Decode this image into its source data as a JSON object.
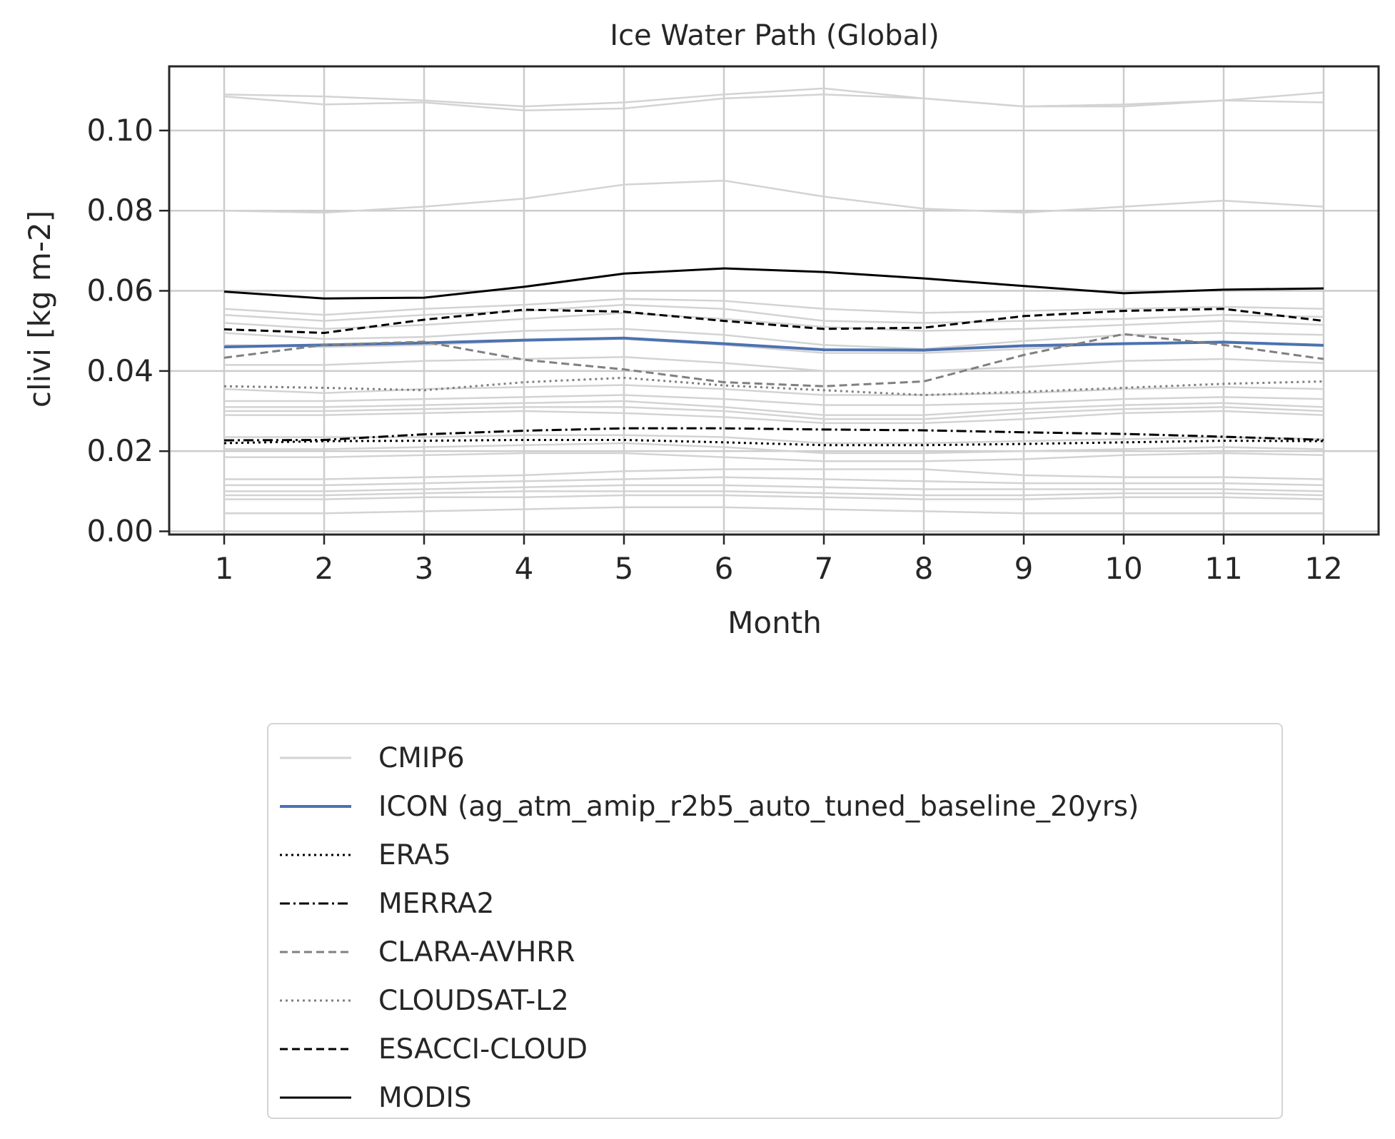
{
  "chart_data": {
    "type": "line",
    "title": "Ice Water Path (Global)",
    "xlabel": "Month",
    "ylabel": "clivi [kg m-2]",
    "x": [
      1,
      2,
      3,
      4,
      5,
      6,
      7,
      8,
      9,
      10,
      11,
      12
    ],
    "xlim": [
      0.45,
      12.55
    ],
    "ylim": [
      -0.0008,
      0.116
    ],
    "yticks": [
      0.0,
      0.02,
      0.04,
      0.06,
      0.08,
      0.1
    ],
    "ytick_labels": [
      "0.00",
      "0.02",
      "0.04",
      "0.06",
      "0.08",
      "0.10"
    ],
    "xtick_labels": [
      "1",
      "2",
      "3",
      "4",
      "5",
      "6",
      "7",
      "8",
      "9",
      "10",
      "11",
      "12"
    ],
    "grid": true,
    "legend_placement": "below",
    "cmip6_color": "#d3d3d3",
    "cmip6_series": [
      [
        0.109,
        0.1085,
        0.1075,
        0.106,
        0.107,
        0.109,
        0.1105,
        0.108,
        0.106,
        0.106,
        0.1075,
        0.1095
      ],
      [
        0.1085,
        0.1065,
        0.107,
        0.105,
        0.1055,
        0.108,
        0.109,
        0.108,
        0.106,
        0.1065,
        0.1075,
        0.107
      ],
      [
        0.08,
        0.0795,
        0.081,
        0.083,
        0.0865,
        0.0875,
        0.0835,
        0.0805,
        0.0795,
        0.081,
        0.0825,
        0.081
      ],
      [
        0.0555,
        0.054,
        0.0555,
        0.0565,
        0.058,
        0.0575,
        0.0555,
        0.0545,
        0.055,
        0.0555,
        0.056,
        0.0555
      ],
      [
        0.054,
        0.0525,
        0.054,
        0.055,
        0.0565,
        0.0555,
        0.0525,
        0.052,
        0.0525,
        0.053,
        0.054,
        0.0535
      ],
      [
        0.052,
        0.0505,
        0.0515,
        0.053,
        0.0545,
        0.053,
        0.051,
        0.05,
        0.0505,
        0.0515,
        0.0525,
        0.0515
      ],
      [
        0.0495,
        0.048,
        0.0485,
        0.05,
        0.0505,
        0.049,
        0.0465,
        0.0455,
        0.0475,
        0.049,
        0.0495,
        0.049
      ],
      [
        0.0465,
        0.046,
        0.0465,
        0.0475,
        0.048,
        0.0465,
        0.0445,
        0.0445,
        0.0455,
        0.047,
        0.047,
        0.0465
      ],
      [
        0.0415,
        0.0415,
        0.0425,
        0.043,
        0.0435,
        0.042,
        0.04,
        0.04,
        0.041,
        0.0425,
        0.043,
        0.042
      ],
      [
        0.0355,
        0.0345,
        0.0355,
        0.036,
        0.0365,
        0.0355,
        0.034,
        0.034,
        0.0345,
        0.0355,
        0.036,
        0.0355
      ],
      [
        0.0325,
        0.0325,
        0.033,
        0.0335,
        0.034,
        0.033,
        0.0315,
        0.0315,
        0.032,
        0.033,
        0.0335,
        0.033
      ],
      [
        0.031,
        0.031,
        0.0315,
        0.032,
        0.0325,
        0.031,
        0.029,
        0.029,
        0.0305,
        0.0315,
        0.032,
        0.031
      ],
      [
        0.03,
        0.03,
        0.0305,
        0.031,
        0.031,
        0.03,
        0.028,
        0.028,
        0.0295,
        0.0305,
        0.031,
        0.03
      ],
      [
        0.029,
        0.029,
        0.0295,
        0.03,
        0.0295,
        0.0285,
        0.027,
        0.027,
        0.028,
        0.0295,
        0.03,
        0.029
      ],
      [
        0.0235,
        0.0235,
        0.0235,
        0.024,
        0.024,
        0.0235,
        0.022,
        0.022,
        0.0225,
        0.023,
        0.0235,
        0.023
      ],
      [
        0.0205,
        0.0205,
        0.021,
        0.0215,
        0.022,
        0.021,
        0.0195,
        0.0195,
        0.02,
        0.0205,
        0.021,
        0.0205
      ],
      [
        0.0185,
        0.0185,
        0.019,
        0.0195,
        0.0195,
        0.0185,
        0.0175,
        0.0175,
        0.018,
        0.019,
        0.0195,
        0.019
      ],
      [
        0.013,
        0.013,
        0.0135,
        0.014,
        0.015,
        0.0155,
        0.0155,
        0.0155,
        0.014,
        0.0135,
        0.0135,
        0.013
      ],
      [
        0.0115,
        0.0115,
        0.012,
        0.0125,
        0.013,
        0.0135,
        0.013,
        0.0125,
        0.012,
        0.012,
        0.012,
        0.0115
      ],
      [
        0.01,
        0.01,
        0.0105,
        0.011,
        0.0115,
        0.0115,
        0.011,
        0.0105,
        0.0105,
        0.0105,
        0.0105,
        0.01
      ],
      [
        0.009,
        0.009,
        0.0095,
        0.01,
        0.01,
        0.01,
        0.0095,
        0.009,
        0.009,
        0.0095,
        0.0095,
        0.009
      ],
      [
        0.008,
        0.008,
        0.0085,
        0.0085,
        0.009,
        0.009,
        0.0085,
        0.008,
        0.008,
        0.0085,
        0.0085,
        0.008
      ],
      [
        0.0045,
        0.0045,
        0.005,
        0.0055,
        0.006,
        0.006,
        0.0055,
        0.005,
        0.0045,
        0.0045,
        0.0045,
        0.0045
      ]
    ],
    "series": [
      {
        "name": "ICON (ag_atm_amip_r2b5_auto_tuned_baseline_20yrs)",
        "color": "#4c72b0",
        "style": "solid",
        "values": [
          0.046,
          0.0465,
          0.047,
          0.0477,
          0.0482,
          0.0468,
          0.0453,
          0.0452,
          0.0463,
          0.0468,
          0.0472,
          0.0464
        ]
      },
      {
        "name": "ERA5",
        "color": "#000000",
        "style": "dotted",
        "values": [
          0.022,
          0.0225,
          0.0226,
          0.0228,
          0.0228,
          0.0222,
          0.0215,
          0.0215,
          0.0218,
          0.0222,
          0.0226,
          0.0225
        ]
      },
      {
        "name": "MERRA2",
        "color": "#000000",
        "style": "dashdot",
        "values": [
          0.0227,
          0.0228,
          0.0242,
          0.0251,
          0.0257,
          0.0257,
          0.0254,
          0.0252,
          0.0247,
          0.0243,
          0.0236,
          0.0228
        ]
      },
      {
        "name": "CLARA-AVHRR",
        "color": "#808080",
        "style": "dashed",
        "values": [
          0.0433,
          0.0465,
          0.0473,
          0.0428,
          0.0404,
          0.0372,
          0.0362,
          0.0374,
          0.044,
          0.0492,
          0.0465,
          0.043
        ]
      },
      {
        "name": "CLOUDSAT-L2",
        "color": "#808080",
        "style": "dotted",
        "values": [
          0.0362,
          0.0358,
          0.0352,
          0.0372,
          0.0383,
          0.0364,
          0.0352,
          0.034,
          0.0348,
          0.0358,
          0.0368,
          0.0374
        ]
      },
      {
        "name": "ESACCI-CLOUD",
        "color": "#000000",
        "style": "dashed",
        "values": [
          0.0504,
          0.0495,
          0.0528,
          0.0553,
          0.0548,
          0.0525,
          0.0505,
          0.0508,
          0.0537,
          0.055,
          0.0555,
          0.0525
        ]
      },
      {
        "name": "MODIS",
        "color": "#000000",
        "style": "solid",
        "values": [
          0.0598,
          0.0581,
          0.0583,
          0.061,
          0.0643,
          0.0656,
          0.0647,
          0.0631,
          0.0612,
          0.0594,
          0.0603,
          0.0606
        ]
      }
    ],
    "legend": [
      {
        "label": "CMIP6",
        "color": "#d3d3d3",
        "style": "solid"
      },
      {
        "label": "ICON (ag_atm_amip_r2b5_auto_tuned_baseline_20yrs)",
        "color": "#4c72b0",
        "style": "solid"
      },
      {
        "label": "ERA5",
        "color": "#000000",
        "style": "dotted"
      },
      {
        "label": "MERRA2",
        "color": "#000000",
        "style": "dashdot"
      },
      {
        "label": "CLARA-AVHRR",
        "color": "#808080",
        "style": "dashed"
      },
      {
        "label": "CLOUDSAT-L2",
        "color": "#808080",
        "style": "dotted"
      },
      {
        "label": "ESACCI-CLOUD",
        "color": "#000000",
        "style": "dashed"
      },
      {
        "label": "MODIS",
        "color": "#000000",
        "style": "solid"
      }
    ]
  }
}
